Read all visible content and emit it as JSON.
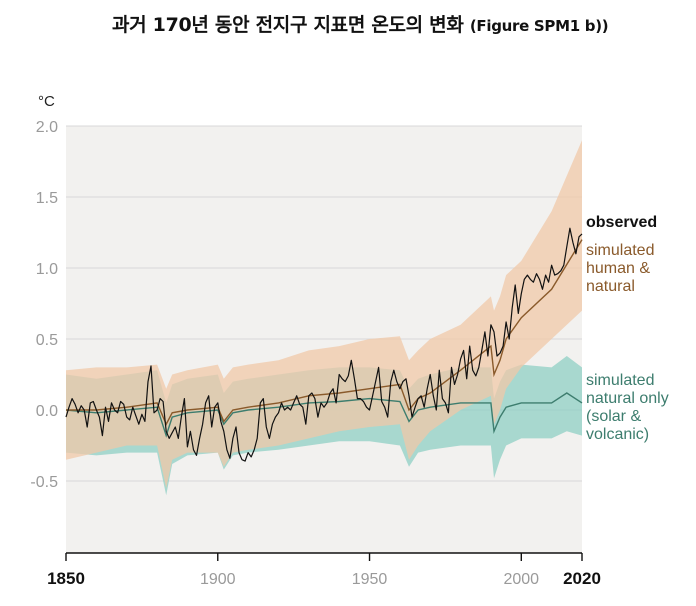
{
  "title": {
    "main": "과거 170년 동안 전지구 지표면 온도의 변화",
    "figure_ref": "(Figure SPM1 b))"
  },
  "colors": {
    "observed": "#111111",
    "human_natural_line": "#8a5a2b",
    "human_natural_band": "#f0c8a8",
    "natural_line": "#3d7d6e",
    "natural_band": "#8fcfc4",
    "plot_bg": "#f2f1ef",
    "grid": "#d8d8d8"
  },
  "chart_data": {
    "type": "line",
    "ylabel": "°C",
    "xlim": [
      1850,
      2020
    ],
    "ylim": [
      -1.0,
      2.0
    ],
    "yticks": [
      2.0,
      1.5,
      1.0,
      0.5,
      0.0,
      -0.5
    ],
    "ytick_labels": [
      "2.0",
      "1.5",
      "1.0",
      "0.5",
      "0.0",
      "-0.5"
    ],
    "xticks": [
      1850,
      1900,
      1950,
      2000,
      2020
    ],
    "xtick_labels": [
      "1850",
      "1900",
      "1950",
      "2000",
      "2020"
    ],
    "grid": true,
    "legend": "right-inline",
    "series": [
      {
        "name": "observed",
        "key": "observed",
        "x": [
          1850,
          1851,
          1852,
          1853,
          1854,
          1855,
          1856,
          1857,
          1858,
          1859,
          1860,
          1861,
          1862,
          1863,
          1864,
          1865,
          1866,
          1867,
          1868,
          1869,
          1870,
          1871,
          1872,
          1873,
          1874,
          1875,
          1876,
          1877,
          1878,
          1879,
          1880,
          1881,
          1882,
          1883,
          1884,
          1885,
          1886,
          1887,
          1888,
          1889,
          1890,
          1891,
          1892,
          1893,
          1894,
          1895,
          1896,
          1897,
          1898,
          1899,
          1900,
          1901,
          1902,
          1903,
          1904,
          1905,
          1906,
          1907,
          1908,
          1909,
          1910,
          1911,
          1912,
          1913,
          1914,
          1915,
          1916,
          1917,
          1918,
          1919,
          1920,
          1921,
          1922,
          1923,
          1924,
          1925,
          1926,
          1927,
          1928,
          1929,
          1930,
          1931,
          1932,
          1933,
          1934,
          1935,
          1936,
          1937,
          1938,
          1939,
          1940,
          1941,
          1942,
          1943,
          1944,
          1945,
          1946,
          1947,
          1948,
          1949,
          1950,
          1951,
          1952,
          1953,
          1954,
          1955,
          1956,
          1957,
          1958,
          1959,
          1960,
          1961,
          1962,
          1963,
          1964,
          1965,
          1966,
          1967,
          1968,
          1969,
          1970,
          1971,
          1972,
          1973,
          1974,
          1975,
          1976,
          1977,
          1978,
          1979,
          1980,
          1981,
          1982,
          1983,
          1984,
          1985,
          1986,
          1987,
          1988,
          1989,
          1990,
          1991,
          1992,
          1993,
          1994,
          1995,
          1996,
          1997,
          1998,
          1999,
          2000,
          2001,
          2002,
          2003,
          2004,
          2005,
          2006,
          2007,
          2008,
          2009,
          2010,
          2011,
          2012,
          2013,
          2014,
          2015,
          2016,
          2017,
          2018,
          2019,
          2020
        ],
        "y": [
          -0.05,
          0.02,
          0.08,
          0.04,
          -0.02,
          0.03,
          0.0,
          -0.12,
          0.05,
          0.06,
          0.0,
          -0.05,
          -0.18,
          0.02,
          -0.08,
          0.05,
          0.0,
          -0.02,
          0.06,
          0.04,
          -0.05,
          -0.07,
          0.02,
          -0.04,
          -0.1,
          -0.03,
          -0.08,
          0.2,
          0.31,
          -0.02,
          0.0,
          0.08,
          0.06,
          -0.15,
          -0.2,
          -0.16,
          -0.12,
          -0.2,
          -0.05,
          0.08,
          -0.26,
          -0.15,
          -0.28,
          -0.32,
          -0.2,
          -0.1,
          0.05,
          0.1,
          -0.12,
          0.02,
          0.05,
          -0.08,
          -0.15,
          -0.28,
          -0.34,
          -0.2,
          -0.12,
          -0.3,
          -0.35,
          -0.36,
          -0.3,
          -0.33,
          -0.28,
          -0.2,
          0.05,
          0.08,
          -0.12,
          -0.2,
          -0.1,
          -0.05,
          -0.02,
          0.05,
          0.0,
          0.02,
          0.0,
          0.05,
          0.1,
          0.04,
          0.02,
          -0.1,
          0.1,
          0.12,
          0.08,
          -0.05,
          0.05,
          0.02,
          0.05,
          0.12,
          0.15,
          0.05,
          0.25,
          0.22,
          0.2,
          0.24,
          0.35,
          0.22,
          0.08,
          0.08,
          0.06,
          0.02,
          0.0,
          0.1,
          0.2,
          0.3,
          0.06,
          0.02,
          -0.05,
          0.2,
          0.28,
          0.2,
          0.15,
          0.2,
          0.22,
          0.1,
          -0.05,
          0.02,
          0.08,
          0.1,
          0.02,
          0.15,
          0.25,
          0.1,
          0.0,
          0.28,
          0.08,
          0.05,
          -0.02,
          0.3,
          0.18,
          0.25,
          0.36,
          0.42,
          0.22,
          0.45,
          0.28,
          0.24,
          0.3,
          0.42,
          0.55,
          0.38,
          0.6,
          0.55,
          0.38,
          0.4,
          0.45,
          0.62,
          0.5,
          0.72,
          0.88,
          0.68,
          0.82,
          0.92,
          0.95,
          0.92,
          0.9,
          0.96,
          0.92,
          0.85,
          0.95,
          0.9,
          1.02,
          0.95,
          0.96,
          0.98,
          1.02,
          1.15,
          1.28,
          1.18,
          1.1,
          1.22,
          1.24
        ]
      },
      {
        "name": "simulated human & natural",
        "key": "human_natural",
        "x": [
          1850,
          1860,
          1870,
          1880,
          1883,
          1885,
          1890,
          1900,
          1902,
          1905,
          1910,
          1920,
          1930,
          1940,
          1950,
          1960,
          1963,
          1966,
          1970,
          1980,
          1990,
          1991,
          1993,
          1995,
          2000,
          2010,
          2020
        ],
        "y": [
          0.0,
          0.0,
          0.02,
          0.05,
          -0.1,
          -0.02,
          0.0,
          0.02,
          -0.08,
          0.0,
          0.02,
          0.05,
          0.1,
          0.12,
          0.15,
          0.18,
          0.0,
          0.08,
          0.12,
          0.28,
          0.45,
          0.25,
          0.35,
          0.5,
          0.65,
          0.85,
          1.2
        ],
        "y_low": [
          -0.35,
          -0.3,
          -0.25,
          -0.25,
          -0.55,
          -0.35,
          -0.3,
          -0.3,
          -0.4,
          -0.3,
          -0.28,
          -0.25,
          -0.2,
          -0.15,
          -0.12,
          -0.1,
          -0.35,
          -0.25,
          -0.15,
          0.0,
          0.1,
          -0.1,
          0.0,
          0.15,
          0.3,
          0.5,
          0.7
        ],
        "y_high": [
          0.28,
          0.3,
          0.3,
          0.32,
          0.15,
          0.25,
          0.28,
          0.32,
          0.22,
          0.3,
          0.32,
          0.35,
          0.42,
          0.45,
          0.5,
          0.52,
          0.35,
          0.42,
          0.5,
          0.6,
          0.8,
          0.7,
          0.8,
          0.95,
          1.05,
          1.4,
          1.9
        ]
      },
      {
        "name": "simulated natural only (solar & volcanic)",
        "key": "natural_only",
        "x": [
          1850,
          1860,
          1870,
          1880,
          1883,
          1885,
          1890,
          1900,
          1902,
          1905,
          1910,
          1920,
          1930,
          1940,
          1950,
          1960,
          1963,
          1966,
          1970,
          1980,
          1990,
          1991,
          1993,
          1995,
          2000,
          2010,
          2015,
          2020
        ],
        "y": [
          0.0,
          -0.02,
          0.0,
          0.02,
          -0.18,
          -0.05,
          -0.02,
          0.0,
          -0.1,
          -0.02,
          0.0,
          0.02,
          0.05,
          0.06,
          0.08,
          0.06,
          -0.08,
          0.0,
          0.02,
          0.05,
          0.05,
          -0.15,
          -0.05,
          0.02,
          0.05,
          0.05,
          0.12,
          0.05
        ],
        "y_low": [
          -0.3,
          -0.32,
          -0.3,
          -0.3,
          -0.6,
          -0.38,
          -0.32,
          -0.3,
          -0.42,
          -0.32,
          -0.3,
          -0.28,
          -0.25,
          -0.22,
          -0.22,
          -0.25,
          -0.4,
          -0.3,
          -0.28,
          -0.25,
          -0.25,
          -0.48,
          -0.35,
          -0.25,
          -0.2,
          -0.2,
          -0.15,
          -0.18
        ],
        "y_high": [
          0.25,
          0.22,
          0.25,
          0.28,
          0.05,
          0.18,
          0.22,
          0.25,
          0.12,
          0.2,
          0.22,
          0.25,
          0.28,
          0.3,
          0.3,
          0.28,
          0.15,
          0.22,
          0.25,
          0.3,
          0.3,
          0.08,
          0.2,
          0.28,
          0.32,
          0.3,
          0.38,
          0.3
        ]
      }
    ],
    "labels": {
      "observed": [
        "observed"
      ],
      "human_natural": [
        "simulated",
        "human &",
        "natural"
      ],
      "natural_only": [
        "simulated",
        "natural only",
        "(solar &",
        "volcanic)"
      ]
    }
  }
}
